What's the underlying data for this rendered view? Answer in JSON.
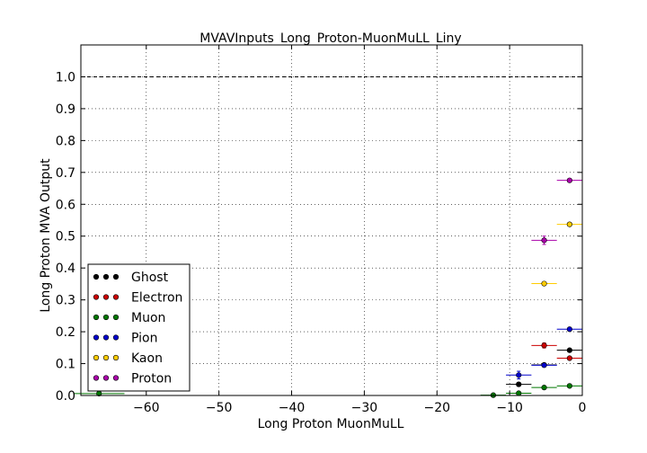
{
  "chart_data": {
    "type": "scatter",
    "title": "MVAVInputs_Long_Proton-MuonMuLL_Liny",
    "xlabel": "Long Proton MuonMuLL",
    "ylabel": "Long Proton MVA Output",
    "xlim": [
      -69,
      0
    ],
    "ylim": [
      0,
      1.1
    ],
    "xticks": [
      -60,
      -50,
      -40,
      -30,
      -20,
      -10,
      0
    ],
    "yticks": [
      0.0,
      0.1,
      0.2,
      0.3,
      0.4,
      0.5,
      0.6,
      0.7,
      0.8,
      0.9,
      1.0
    ],
    "grid": true,
    "reference_line": 1.0,
    "legend_position": "lower-left",
    "series": [
      {
        "name": "Ghost",
        "color": "#000000",
        "points": [
          {
            "x": -1.75,
            "y": 0.142,
            "xerr": 1.75,
            "yerr": 0.004
          },
          {
            "x": -5.25,
            "y": 0.096,
            "xerr": 1.75,
            "yerr": 0.004
          },
          {
            "x": -8.75,
            "y": 0.035,
            "xerr": 1.75,
            "yerr": 0.006
          }
        ]
      },
      {
        "name": "Electron",
        "color": "#cc0000",
        "points": [
          {
            "x": -1.75,
            "y": 0.117,
            "xerr": 1.75,
            "yerr": 0.004
          },
          {
            "x": -5.25,
            "y": 0.157,
            "xerr": 1.75,
            "yerr": 0.008
          }
        ]
      },
      {
        "name": "Muon",
        "color": "#007700",
        "points": [
          {
            "x": -1.75,
            "y": 0.03,
            "xerr": 1.75,
            "yerr": 0.002
          },
          {
            "x": -5.25,
            "y": 0.025,
            "xerr": 1.75,
            "yerr": 0.002
          },
          {
            "x": -8.75,
            "y": 0.007,
            "xerr": 1.75,
            "yerr": 0.002
          },
          {
            "x": -12.25,
            "y": 0.001,
            "xerr": 1.75,
            "yerr": 0.001
          },
          {
            "x": -66.5,
            "y": 0.006,
            "xerr": 3.5,
            "yerr": 0.001
          }
        ]
      },
      {
        "name": "Pion",
        "color": "#0000cc",
        "points": [
          {
            "x": -1.75,
            "y": 0.208,
            "xerr": 1.75,
            "yerr": 0.004
          },
          {
            "x": -5.25,
            "y": 0.095,
            "xerr": 1.75,
            "yerr": 0.004
          },
          {
            "x": -8.75,
            "y": 0.064,
            "xerr": 1.75,
            "yerr": 0.012
          }
        ]
      },
      {
        "name": "Kaon",
        "color": "#ffcc00",
        "points": [
          {
            "x": -1.75,
            "y": 0.537,
            "xerr": 1.75,
            "yerr": 0.004
          },
          {
            "x": -5.25,
            "y": 0.351,
            "xerr": 1.75,
            "yerr": 0.005
          }
        ]
      },
      {
        "name": "Proton",
        "color": "#aa00aa",
        "points": [
          {
            "x": -1.75,
            "y": 0.675,
            "xerr": 1.75,
            "yerr": 0.004
          },
          {
            "x": -5.25,
            "y": 0.487,
            "xerr": 1.75,
            "yerr": 0.013
          }
        ]
      }
    ]
  }
}
